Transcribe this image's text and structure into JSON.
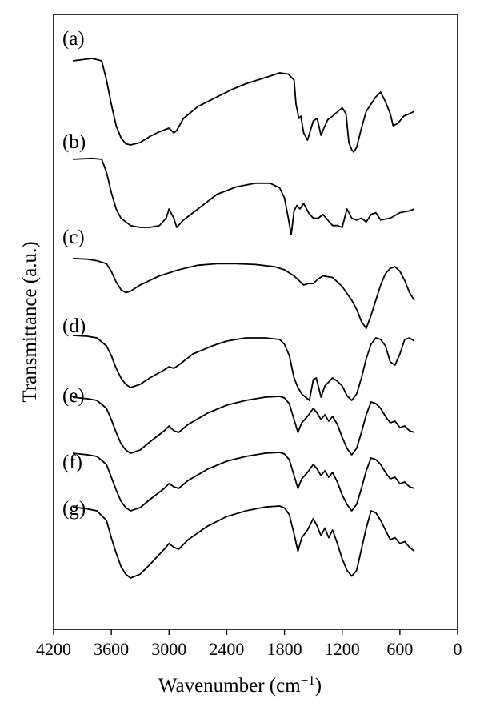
{
  "chart_data": {
    "type": "line",
    "title": "",
    "xlabel": "Wavenumber (cm",
    "xlabel_superscript": "−1",
    "xlabel_suffix": ")",
    "ylabel": "Transmittance (a.u.)",
    "xlim": [
      4200,
      0
    ],
    "x_reversed": true,
    "y_ticks_shown": false,
    "grid": false,
    "x_ticks": [
      4200,
      3600,
      3000,
      2400,
      1800,
      1200,
      600,
      0
    ],
    "series": [
      {
        "name": "(a)",
        "x": [
          4000,
          3900,
          3800,
          3700,
          3650,
          3600,
          3550,
          3500,
          3450,
          3400,
          3300,
          3200,
          3100,
          3000,
          2950,
          2920,
          2850,
          2700,
          2500,
          2350,
          2200,
          2000,
          1850,
          1760,
          1700,
          1680,
          1650,
          1630,
          1600,
          1560,
          1500,
          1460,
          1420,
          1390,
          1350,
          1300,
          1200,
          1160,
          1130,
          1100,
          1080,
          1050,
          1000,
          950,
          900,
          850,
          800,
          750,
          700,
          670,
          620,
          560,
          500,
          450
        ],
        "y": [
          96,
          97,
          98,
          96,
          80,
          60,
          42,
          32,
          27,
          26,
          28,
          33,
          37,
          40,
          36,
          38,
          48,
          58,
          66,
          72,
          77,
          82,
          86,
          85,
          80,
          60,
          48,
          50,
          36,
          30,
          46,
          48,
          34,
          40,
          47,
          50,
          57,
          52,
          28,
          22,
          20,
          24,
          40,
          54,
          60,
          66,
          70,
          62,
          52,
          42,
          44,
          50,
          52,
          54
        ]
      },
      {
        "name": "(b)",
        "x": [
          4000,
          3800,
          3700,
          3650,
          3600,
          3550,
          3500,
          3400,
          3300,
          3200,
          3100,
          3030,
          3000,
          2950,
          2920,
          2850,
          2700,
          2500,
          2300,
          2100,
          1950,
          1850,
          1800,
          1760,
          1730,
          1700,
          1670,
          1640,
          1600,
          1550,
          1500,
          1450,
          1400,
          1300,
          1250,
          1200,
          1150,
          1100,
          1050,
          1000,
          950,
          900,
          850,
          800,
          700,
          600,
          500,
          450
        ],
        "y": [
          94,
          95,
          94,
          80,
          58,
          40,
          30,
          22,
          20,
          20,
          22,
          30,
          40,
          30,
          20,
          28,
          40,
          56,
          64,
          68,
          68,
          63,
          52,
          30,
          12,
          38,
          44,
          40,
          46,
          36,
          30,
          30,
          34,
          22,
          22,
          20,
          40,
          30,
          28,
          30,
          26,
          34,
          36,
          28,
          30,
          36,
          38,
          40
        ]
      },
      {
        "name": "(c)",
        "x": [
          4000,
          3850,
          3750,
          3650,
          3600,
          3550,
          3500,
          3450,
          3400,
          3300,
          3100,
          2900,
          2700,
          2500,
          2300,
          2100,
          1900,
          1800,
          1700,
          1650,
          1600,
          1550,
          1500,
          1450,
          1400,
          1300,
          1200,
          1100,
          1050,
          1000,
          950,
          900,
          850,
          800,
          750,
          700,
          650,
          600,
          550,
          500,
          450
        ],
        "y": [
          95,
          94,
          92,
          88,
          78,
          64,
          54,
          50,
          52,
          60,
          72,
          80,
          86,
          88,
          88,
          87,
          84,
          80,
          72,
          66,
          60,
          62,
          62,
          68,
          72,
          70,
          58,
          40,
          28,
          12,
          3,
          20,
          40,
          60,
          75,
          82,
          84,
          78,
          66,
          50,
          40
        ]
      },
      {
        "name": "(d)",
        "x": [
          4000,
          3850,
          3750,
          3650,
          3600,
          3550,
          3500,
          3450,
          3400,
          3300,
          3200,
          3050,
          3000,
          2950,
          2900,
          2750,
          2550,
          2400,
          2200,
          2000,
          1850,
          1800,
          1750,
          1700,
          1660,
          1620,
          1580,
          1540,
          1500,
          1470,
          1420,
          1380,
          1300,
          1250,
          1200,
          1150,
          1100,
          1050,
          1000,
          950,
          900,
          850,
          800,
          750,
          700,
          650,
          600,
          550,
          500,
          450
        ],
        "y": [
          93,
          92,
          90,
          80,
          68,
          52,
          40,
          32,
          28,
          32,
          40,
          50,
          54,
          52,
          56,
          70,
          80,
          86,
          90,
          90,
          88,
          82,
          68,
          40,
          28,
          20,
          16,
          12,
          38,
          40,
          16,
          30,
          40,
          36,
          30,
          18,
          12,
          20,
          40,
          64,
          82,
          90,
          88,
          80,
          60,
          56,
          70,
          88,
          90,
          86
        ]
      },
      {
        "name": "(e)",
        "x": [
          4000,
          3850,
          3750,
          3650,
          3600,
          3550,
          3500,
          3450,
          3400,
          3300,
          3200,
          3050,
          3000,
          2950,
          2900,
          2800,
          2600,
          2400,
          2200,
          2000,
          1850,
          1800,
          1750,
          1700,
          1660,
          1620,
          1560,
          1500,
          1460,
          1420,
          1380,
          1340,
          1300,
          1250,
          1200,
          1150,
          1100,
          1050,
          1000,
          950,
          900,
          850,
          800,
          750,
          700,
          650,
          600,
          550,
          500,
          450
        ],
        "y": [
          94,
          92,
          90,
          80,
          66,
          50,
          36,
          28,
          24,
          28,
          38,
          52,
          58,
          52,
          50,
          60,
          74,
          84,
          90,
          94,
          95,
          93,
          86,
          66,
          50,
          62,
          70,
          80,
          74,
          66,
          72,
          64,
          70,
          60,
          44,
          30,
          22,
          30,
          50,
          72,
          88,
          86,
          80,
          70,
          62,
          64,
          56,
          58,
          52,
          50
        ]
      },
      {
        "name": "(f)",
        "x": [
          4000,
          3850,
          3750,
          3650,
          3600,
          3550,
          3500,
          3450,
          3400,
          3300,
          3200,
          3050,
          3000,
          2950,
          2900,
          2800,
          2600,
          2400,
          2200,
          2000,
          1850,
          1800,
          1750,
          1700,
          1660,
          1620,
          1560,
          1500,
          1460,
          1420,
          1380,
          1340,
          1300,
          1250,
          1200,
          1150,
          1100,
          1050,
          1000,
          950,
          900,
          850,
          800,
          750,
          700,
          650,
          600,
          550,
          500,
          450
        ],
        "y": [
          94,
          92,
          90,
          80,
          64,
          48,
          34,
          26,
          22,
          26,
          36,
          50,
          56,
          52,
          50,
          60,
          74,
          84,
          90,
          94,
          95,
          93,
          86,
          66,
          50,
          62,
          70,
          80,
          74,
          66,
          72,
          64,
          70,
          58,
          42,
          30,
          22,
          30,
          50,
          72,
          88,
          86,
          80,
          70,
          62,
          64,
          56,
          58,
          52,
          50
        ]
      },
      {
        "name": "(g)",
        "x": [
          4000,
          3850,
          3750,
          3650,
          3600,
          3550,
          3500,
          3450,
          3400,
          3300,
          3200,
          3050,
          3000,
          2950,
          2900,
          2800,
          2600,
          2400,
          2200,
          2000,
          1850,
          1800,
          1750,
          1700,
          1660,
          1620,
          1560,
          1500,
          1460,
          1420,
          1380,
          1340,
          1300,
          1250,
          1200,
          1150,
          1100,
          1050,
          1000,
          950,
          900,
          850,
          800,
          750,
          700,
          650,
          600,
          550,
          500,
          450
        ],
        "y": [
          94,
          92,
          90,
          80,
          62,
          46,
          32,
          24,
          20,
          24,
          34,
          50,
          56,
          52,
          50,
          60,
          74,
          84,
          90,
          94,
          95,
          93,
          86,
          66,
          48,
          62,
          70,
          82,
          74,
          64,
          72,
          62,
          70,
          56,
          40,
          28,
          22,
          28,
          50,
          72,
          90,
          88,
          80,
          70,
          60,
          62,
          56,
          58,
          52,
          48
        ]
      }
    ]
  }
}
